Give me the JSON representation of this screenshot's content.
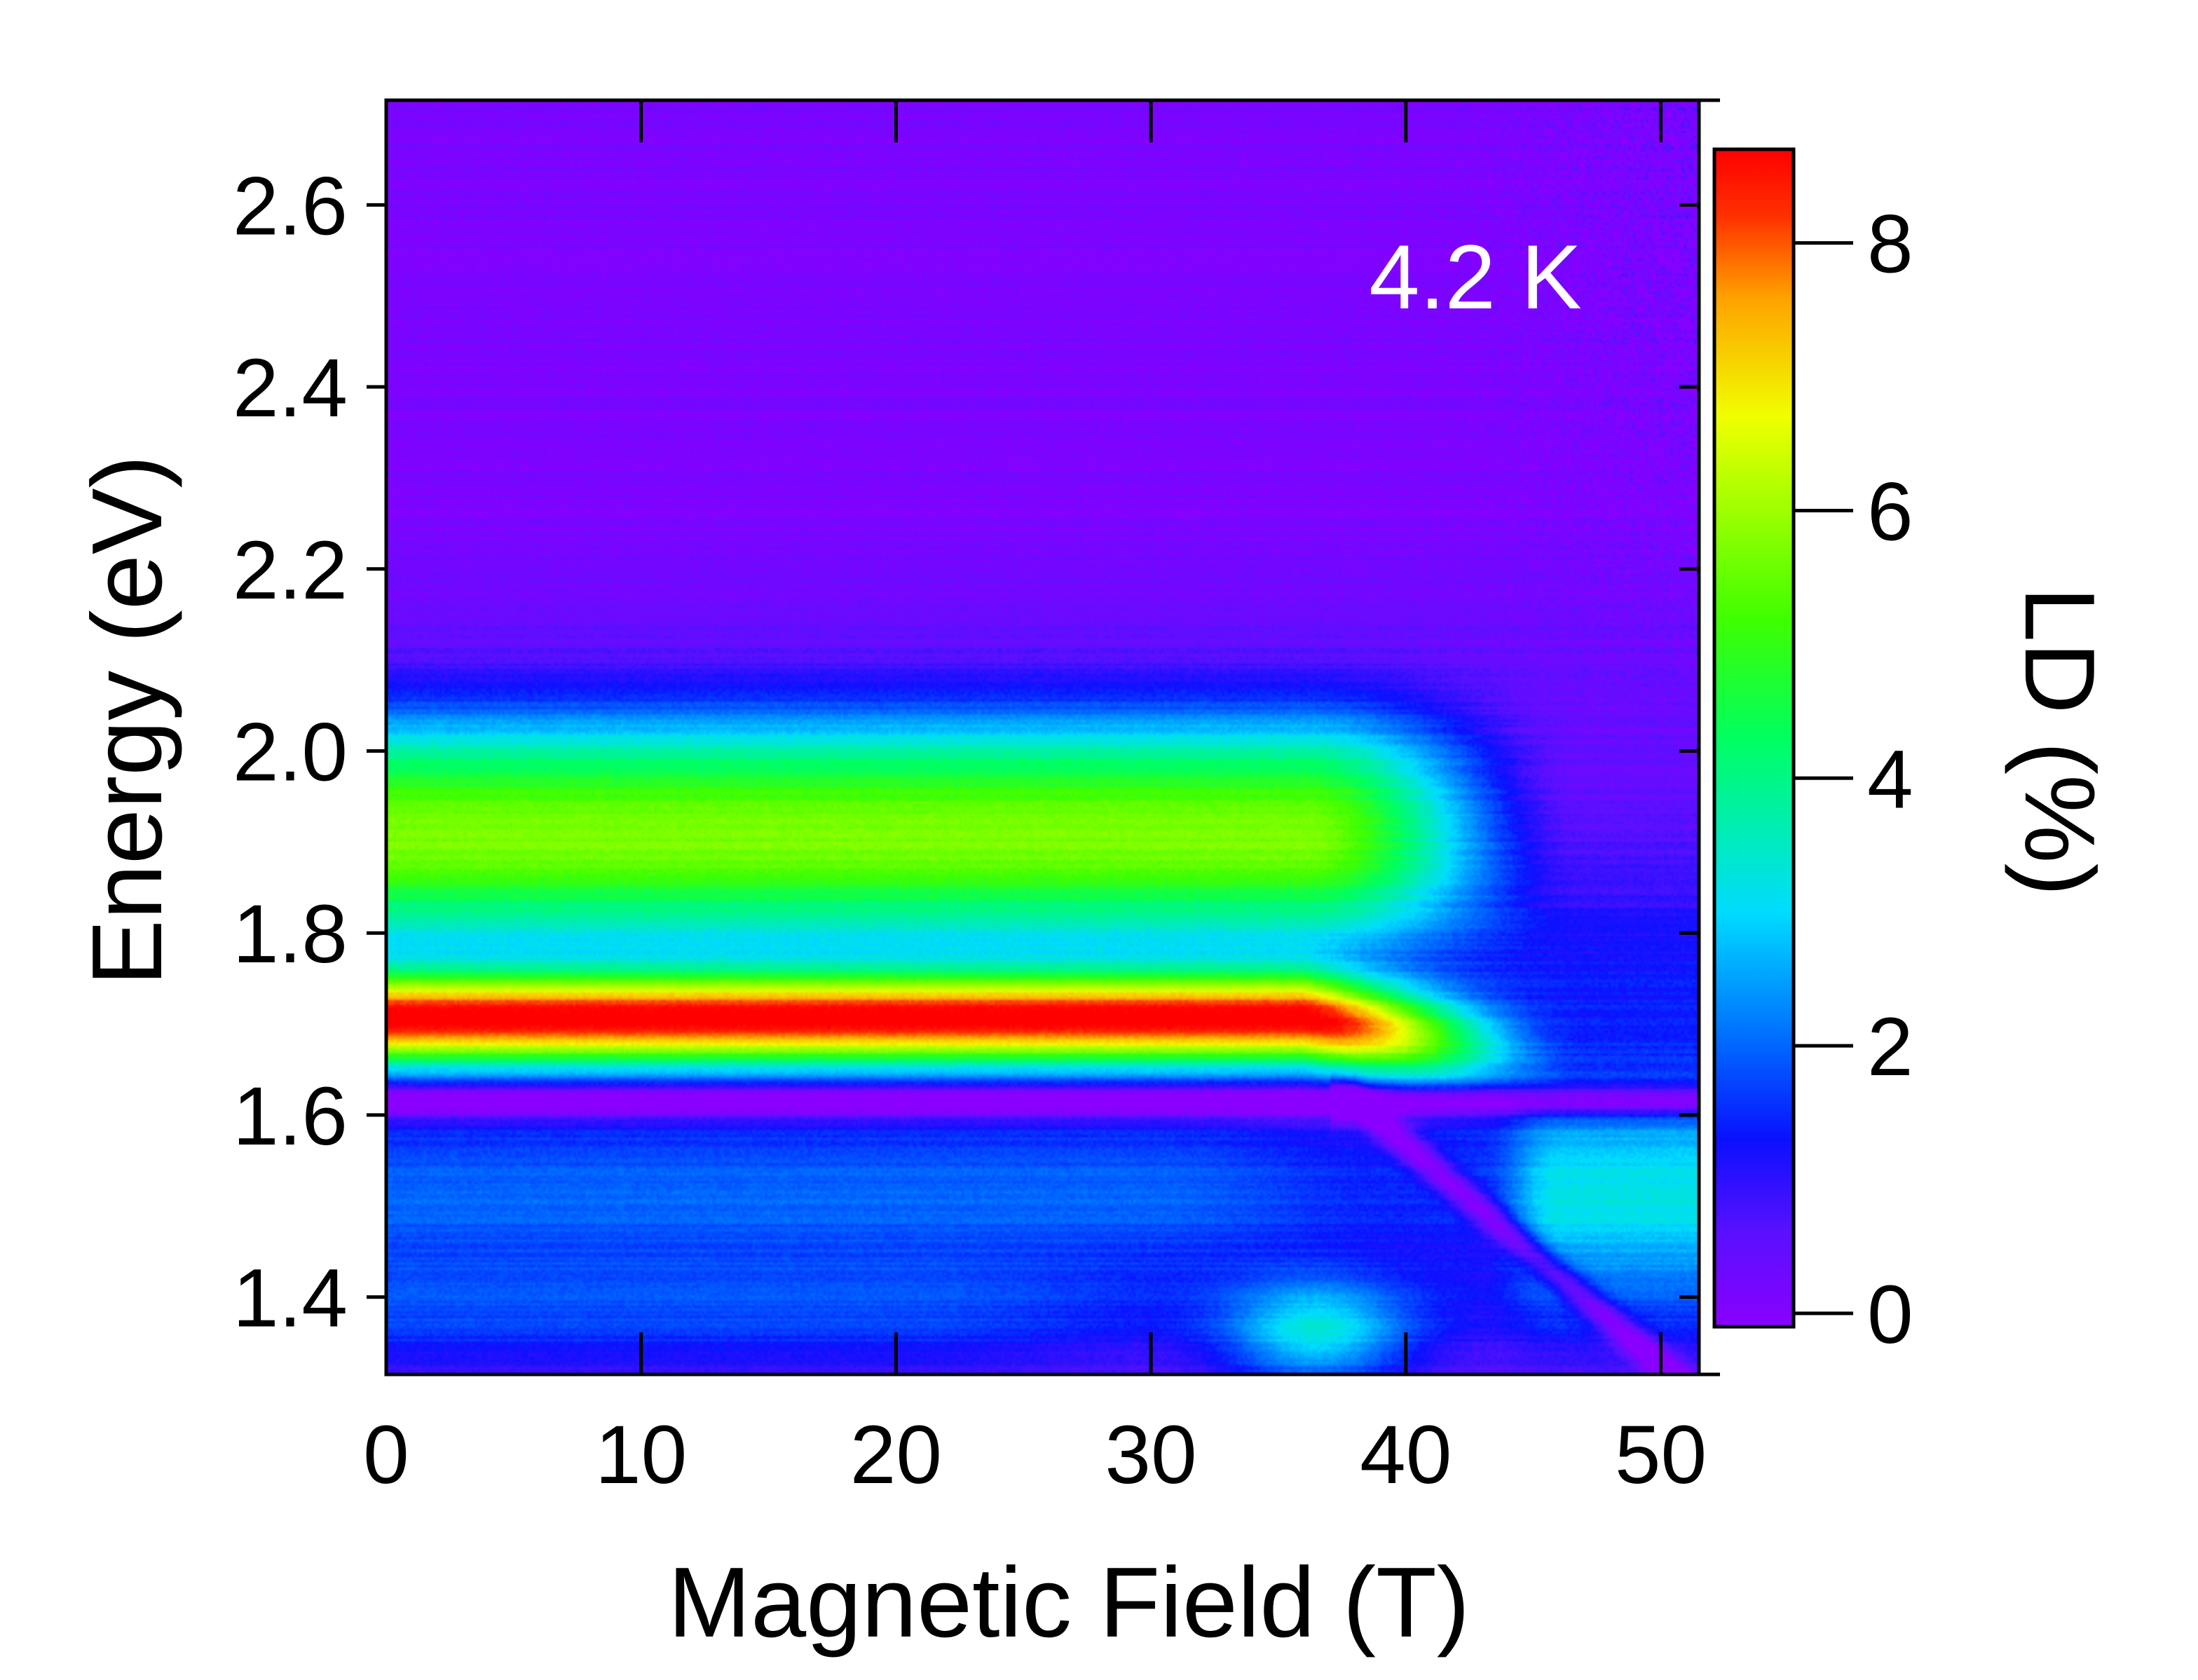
{
  "chart_data": {
    "type": "heatmap",
    "title": "",
    "xlabel": "Magnetic Field (T)",
    "ylabel": "Energy (eV)",
    "colorbar_label": "LD (%)",
    "annotation": "4.2 K",
    "xlim": [
      0,
      51.5
    ],
    "ylim": [
      1.315,
      2.715
    ],
    "x_ticks": [
      0,
      10,
      20,
      30,
      40,
      50
    ],
    "x_tick_labels": [
      "0",
      "10",
      "20",
      "30",
      "40",
      "50"
    ],
    "y_ticks": [
      1.4,
      1.6,
      1.8,
      2.0,
      2.2,
      2.4,
      2.6
    ],
    "y_tick_labels": [
      "1.4",
      "1.6",
      "1.8",
      "2.0",
      "2.2",
      "2.4",
      "2.6"
    ],
    "colorbar_range": [
      -0.1,
      8.7
    ],
    "colorbar_ticks": [
      0,
      2,
      4,
      6,
      8
    ],
    "colorbar_tick_labels": [
      "0",
      "2",
      "4",
      "6",
      "8"
    ],
    "colormap": "rainbow (violet → blue → cyan → green → yellow → orange → red)",
    "colormap_stops": [
      "#8a00ff",
      "#5a10ff",
      "#0a10ff",
      "#0066ff",
      "#00dcff",
      "#00ff60",
      "#40ff00",
      "#f0ff00",
      "#ffa000",
      "#ff3000",
      "#ff0000"
    ],
    "grid": false,
    "features": [
      {
        "name": "main LD peak",
        "energy_eV": 1.71,
        "max_LD_percent": 8.6,
        "field_range_T": [
          0,
          45
        ]
      },
      {
        "name": "upper shoulder",
        "energy_eV": 1.88,
        "LD_percent": 5.0,
        "field_range_T": [
          0,
          42
        ]
      },
      {
        "name": "sharp dip",
        "energy_eV": 1.615,
        "field_range_T": [
          0,
          51.5
        ]
      },
      {
        "name": "low-energy band",
        "energy_eV": 1.5,
        "LD_percent": 2.0
      },
      {
        "name": "high-field feature",
        "energy_eV": 1.36,
        "LD_percent": 2.6,
        "field_range_T": [
          33,
          40
        ]
      }
    ]
  }
}
